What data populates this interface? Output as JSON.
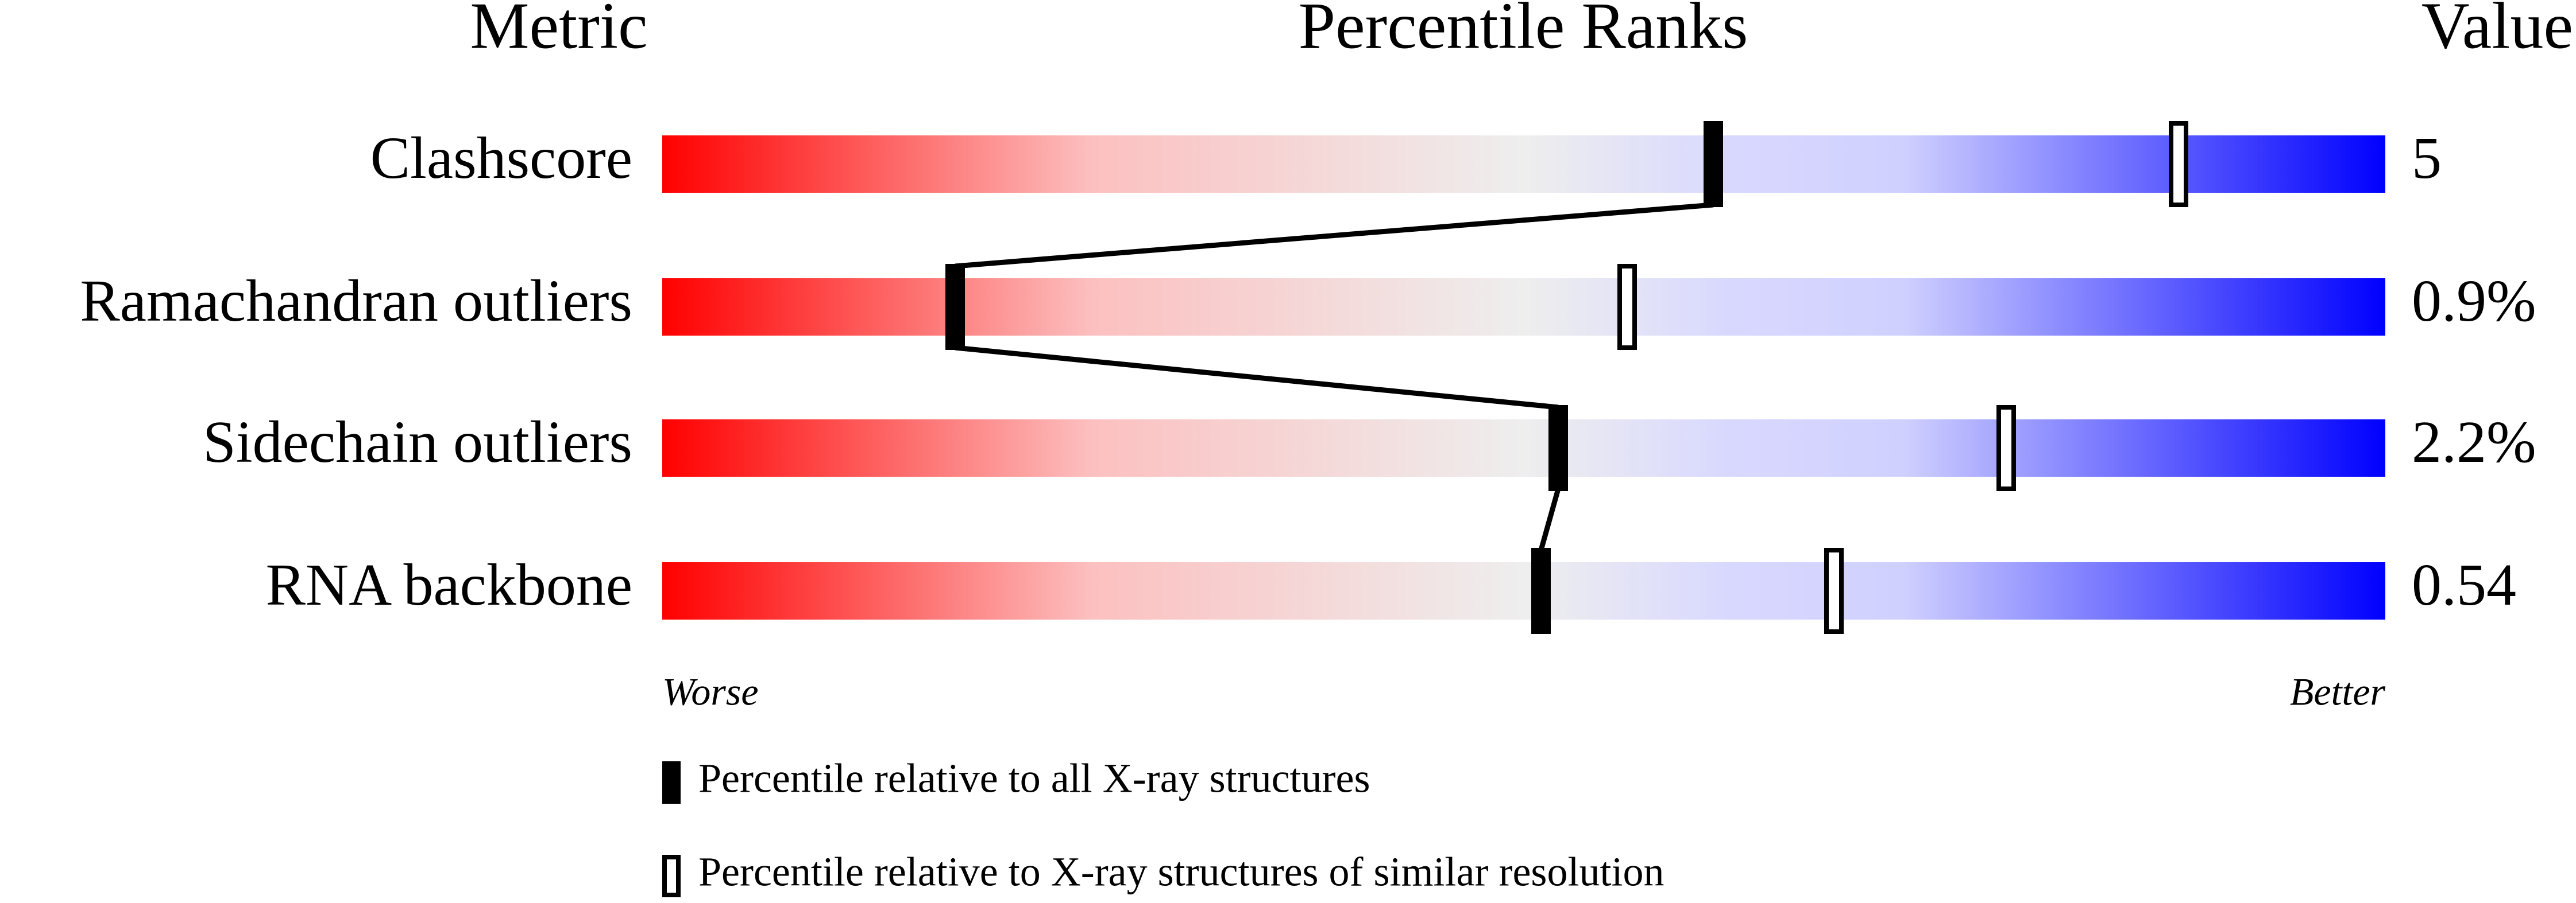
{
  "chart_data": {
    "type": "percentile",
    "headers": [
      "Metric",
      "Percentile Ranks",
      "Value"
    ],
    "categories": [
      "Clashscore",
      "Ramachandran outliers",
      "Sidechain outliers",
      "RNA backbone"
    ],
    "metric_values": [
      "5",
      "0.9%",
      "2.2%",
      "0.54"
    ],
    "series": [
      {
        "name": "Percentile relative to all X-ray structures",
        "color": "#000000",
        "filled": true,
        "values": [
          61,
          17,
          52,
          51
        ]
      },
      {
        "name": "Percentile relative to X-ray structures of similar resolution",
        "color": "#000000",
        "filled": false,
        "values": [
          88,
          56,
          78,
          68
        ]
      }
    ],
    "xlim": [
      0,
      100
    ],
    "axis_end_labels": [
      "Worse",
      "Better"
    ]
  }
}
